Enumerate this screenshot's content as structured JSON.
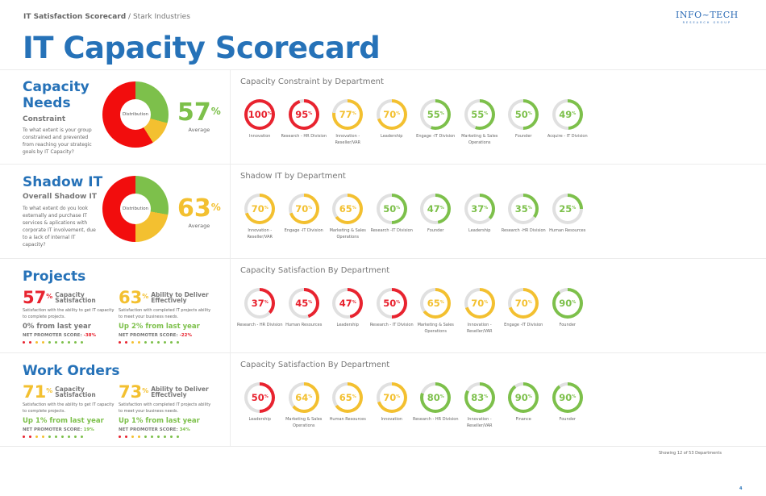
{
  "breadcrumb": {
    "parent": "IT Satisfaction Scorecard",
    "separator": " / ",
    "current": "Stark Industries"
  },
  "logo": {
    "line1": "INFO~TECH",
    "line2": "RESEARCH GROUP"
  },
  "title": "IT Capacity Scorecard",
  "colors": {
    "red": "#e8232f",
    "yellow": "#f3c030",
    "green": "#7dc04b",
    "blue": "#2672b8",
    "track": "#e0e0e0"
  },
  "sections": {
    "capacity": {
      "title_line1": "Capacity",
      "title_line2": "Needs",
      "subtitle": "Constraint",
      "description": "To what extent is your group constrained and prevented from reaching your strategic goals by IT Capacity?",
      "donut_label": "Distribution",
      "average": "57",
      "average_suffix": "%",
      "average_label": "Average",
      "dept_title": "Capacity Constraint by Department",
      "departments": [
        {
          "value": 100,
          "label": "Innovation",
          "color": "red"
        },
        {
          "value": 95,
          "label": "Research - HR Division",
          "color": "red"
        },
        {
          "value": 77,
          "label": "Innovation - Reseller/VAR",
          "color": "yellow"
        },
        {
          "value": 70,
          "label": "Leadership",
          "color": "yellow"
        },
        {
          "value": 55,
          "label": "Engage -IT Division",
          "color": "green"
        },
        {
          "value": 55,
          "label": "Marketing & Sales Operations",
          "color": "green"
        },
        {
          "value": 50,
          "label": "Founder",
          "color": "green"
        },
        {
          "value": 49,
          "label": "Acquire - IT Division",
          "color": "green"
        }
      ]
    },
    "shadow": {
      "title": "Shadow IT",
      "subtitle": "Overall Shadow IT",
      "description": "To what extent do you look externally and purchase IT services & aplications with corporate IT involvement, due to a lack of internal IT capacity?",
      "donut_label": "Distribution",
      "average": "63",
      "average_suffix": "%",
      "average_label": "Average",
      "dept_title": "Shadow IT by Department",
      "departments": [
        {
          "value": 70,
          "label": "Innovation -Reseller/VAR",
          "color": "yellow"
        },
        {
          "value": 70,
          "label": "Engage -IT Division",
          "color": "yellow"
        },
        {
          "value": 65,
          "label": "Marketing & Sales Operations",
          "color": "yellow"
        },
        {
          "value": 50,
          "label": "Research -IT Division",
          "color": "green"
        },
        {
          "value": 47,
          "label": "Founder",
          "color": "green"
        },
        {
          "value": 37,
          "label": "Leadership",
          "color": "green"
        },
        {
          "value": 35,
          "label": "Research -HR Division",
          "color": "green"
        },
        {
          "value": 25,
          "label": "Human Resources",
          "color": "green"
        }
      ]
    },
    "projects": {
      "title": "Projects",
      "metrics": [
        {
          "value": "57",
          "suffix": "%",
          "title1": "Capacity",
          "title2": "Satisfaction",
          "desc": "Satisfaction with the ability to get IT capacity to complete projects.",
          "change": "0% from last year",
          "change_color": "#777777",
          "nps_label": "NET PROMOTER SCORE:",
          "nps_value": "-38%",
          "nps_color": "#e8232f",
          "value_color": "red"
        },
        {
          "value": "63",
          "suffix": "%",
          "title1": "Ability to Deliver",
          "title2": "Effectively",
          "desc": "Satisfaction with completed IT projects ability to meet your business needs.",
          "change": "Up 2% from last year",
          "change_color": "#7dc04b",
          "nps_label": "NET PROMOTER SCORE:",
          "nps_value": "-22%",
          "nps_color": "#e8232f",
          "value_color": "yellow"
        }
      ],
      "dept_title": "Capacity Satisfaction By Department",
      "departments": [
        {
          "value": 37,
          "label": "Research - HR Division",
          "color": "red"
        },
        {
          "value": 45,
          "label": "Human Resources",
          "color": "red"
        },
        {
          "value": 47,
          "label": "Leadership",
          "color": "red"
        },
        {
          "value": 50,
          "label": "Research - IT Division",
          "color": "red"
        },
        {
          "value": 65,
          "label": "Marketing & Sales Operations",
          "color": "yellow"
        },
        {
          "value": 70,
          "label": "Innovation - Reseller/VAR",
          "color": "yellow"
        },
        {
          "value": 70,
          "label": "Engage -IT Division",
          "color": "yellow"
        },
        {
          "value": 90,
          "label": "Founder",
          "color": "green"
        }
      ]
    },
    "workorders": {
      "title": "Work Orders",
      "metrics": [
        {
          "value": "71",
          "suffix": "%",
          "title1": "Capacity",
          "title2": "Satisfaction",
          "desc": "Satisfaction with the ability to get IT capacity to complete projects.",
          "change": "Up 1% from last year",
          "change_color": "#7dc04b",
          "nps_label": "NET PROMOTER SCORE:",
          "nps_value": "19%",
          "nps_color": "#7dc04b",
          "value_color": "yellow"
        },
        {
          "value": "73",
          "suffix": "%",
          "title1": "Ability to Deliver",
          "title2": "Effectively",
          "desc": "Satisfaction with completed IT projects ability to meet your business needs.",
          "change": "Up 1% from last year",
          "change_color": "#7dc04b",
          "nps_label": "NET PROMOTER SCORE:",
          "nps_value": "34%",
          "nps_color": "#7dc04b",
          "value_color": "yellow"
        }
      ],
      "dept_title": "Capacity Satisfaction By Department",
      "departments": [
        {
          "value": 50,
          "label": "Leadership",
          "color": "red"
        },
        {
          "value": 64,
          "label": "Marketing & Sales Operations",
          "color": "yellow"
        },
        {
          "value": 65,
          "label": "Human Resources",
          "color": "yellow"
        },
        {
          "value": 70,
          "label": "Innovation",
          "color": "yellow"
        },
        {
          "value": 80,
          "label": "Research - HR Division",
          "color": "green"
        },
        {
          "value": 83,
          "label": "Innovation - Reseller/VAR",
          "color": "green"
        },
        {
          "value": 90,
          "label": "Finance",
          "color": "green"
        },
        {
          "value": 90,
          "label": "Founder",
          "color": "green"
        }
      ]
    }
  },
  "nps_dots": [
    "red",
    "red",
    "yellow",
    "yellow",
    "green",
    "green",
    "green",
    "green",
    "green",
    "green"
  ],
  "footer": {
    "showing": "Showing 12 of 53 Departments",
    "page": "4"
  },
  "chart_data": [
    {
      "type": "pie",
      "title": "Capacity Needs Distribution",
      "categories": [
        "Green",
        "Yellow",
        "Red"
      ],
      "values": [
        29,
        12,
        59
      ]
    },
    {
      "type": "pie",
      "title": "Shadow IT Distribution",
      "categories": [
        "Green",
        "Yellow",
        "Red"
      ],
      "values": [
        28,
        22,
        50
      ]
    }
  ]
}
